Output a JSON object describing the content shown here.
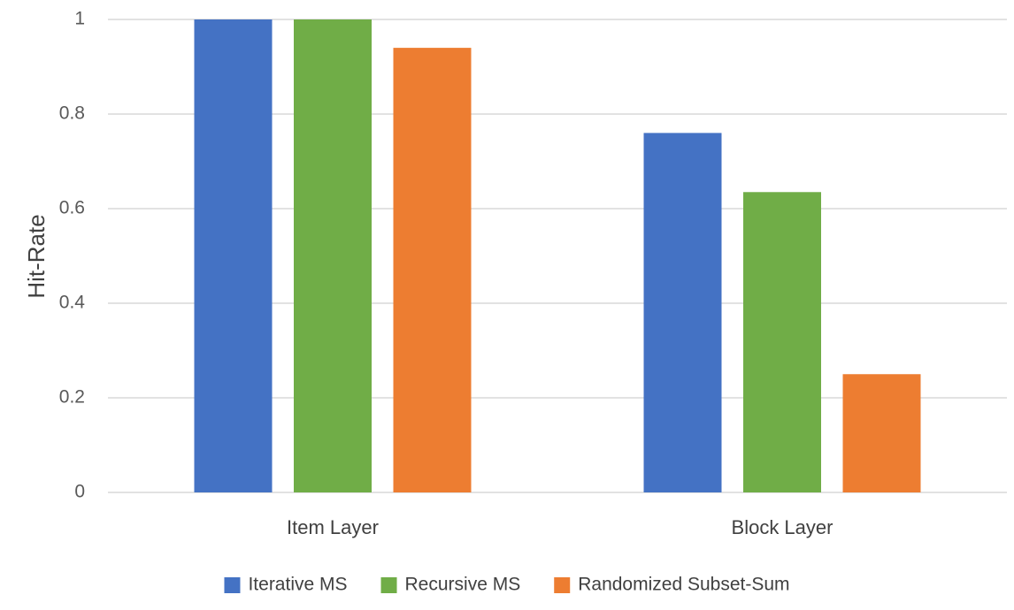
{
  "chart_data": {
    "type": "bar",
    "title": "",
    "xlabel": "",
    "ylabel": "Hit-Rate",
    "ylim": [
      0,
      1
    ],
    "yticks": [
      "0",
      "0.2",
      "0.4",
      "0.6",
      "0.8",
      "1"
    ],
    "categories": [
      "Item Layer",
      "Block Layer"
    ],
    "series": [
      {
        "name": "Iterative MS",
        "color": "#4472c4",
        "values": [
          1.0,
          0.76
        ]
      },
      {
        "name": "Recursive MS",
        "color": "#70ad47",
        "values": [
          1.0,
          0.635
        ]
      },
      {
        "name": "Randomized Subset-Sum",
        "color": "#ed7d31",
        "values": [
          0.94,
          0.25
        ]
      }
    ],
    "grid": true,
    "legend_position": "bottom"
  }
}
